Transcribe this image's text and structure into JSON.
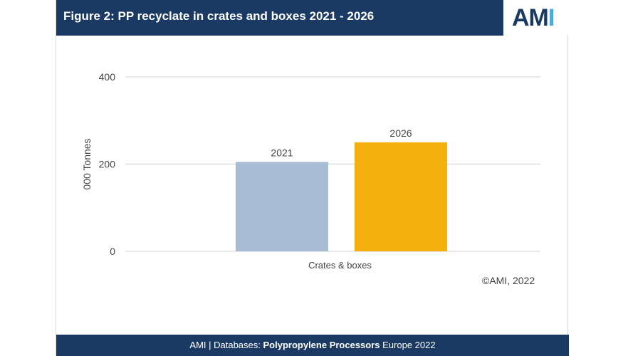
{
  "header": {
    "title": "Figure 2: PP recyclate in crates and boxes 2021 - 2026",
    "logo_am": "AM",
    "logo_i": "I"
  },
  "footer": {
    "prefix": "AMI | Databases: ",
    "product": "Polypropylene Processors",
    "suffix": " Europe 2022"
  },
  "copyright": "©AMI, 2022",
  "colors": {
    "header_bg": "#1b3a63",
    "bar_2021": "#a7bdd4",
    "bar_2026": "#f5b00f"
  },
  "chart_data": {
    "type": "bar",
    "title": "",
    "xlabel": "",
    "ylabel": "000 Tonnes",
    "categories": [
      "Crates & boxes"
    ],
    "series": [
      {
        "name": "2021",
        "values": [
          205
        ],
        "color": "#a7bdd4"
      },
      {
        "name": "2026",
        "values": [
          250
        ],
        "color": "#f5b00f"
      }
    ],
    "ylim": [
      0,
      400
    ],
    "yticks": [
      0,
      200,
      400
    ],
    "grid": true,
    "legend": "none"
  }
}
